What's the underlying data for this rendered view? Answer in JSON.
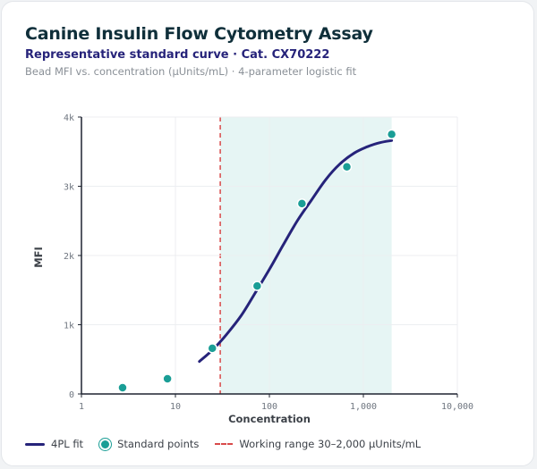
{
  "header": {
    "title": "Canine Insulin Flow Cytometry Assay",
    "subtitle": "Representative standard curve · Cat. CX70222",
    "caption": "Bead MFI vs. concentration (µUnits/mL) · 4-parameter logistic fit"
  },
  "legend": {
    "fit_label": "4PL fit",
    "points_label": "Standard points",
    "range_label": "Working range 30–2,000 µUnits/mL"
  },
  "colors": {
    "fit": "#26237a",
    "points": "#1a9e96",
    "range_fill": "#e6f5f4",
    "lod_line": "#d84a4a"
  },
  "chart_data": {
    "type": "scatter",
    "xlabel": "Concentration",
    "ylabel": "MFI",
    "x_scale": "log",
    "xlim": [
      1,
      10000
    ],
    "ylim": [
      0,
      4000
    ],
    "x_ticks": [
      1,
      10,
      100,
      1000,
      10000
    ],
    "x_tick_labels": [
      "1",
      "10",
      "100",
      "1,000",
      "10,000"
    ],
    "y_ticks": [
      0,
      1000,
      2000,
      3000,
      4000
    ],
    "y_tick_labels": [
      "0",
      "1k",
      "2k",
      "3k",
      "4k"
    ],
    "grid": true,
    "working_range": [
      30,
      2000
    ],
    "series": [
      {
        "name": "Standard points",
        "x": [
          2.74,
          8.23,
          24.7,
          74.1,
          222,
          667,
          2000
        ],
        "y": [
          90,
          220,
          660,
          1560,
          2750,
          3280,
          3750
        ]
      },
      {
        "name": "4PL fit",
        "type": "line",
        "x": [
          18,
          25,
          35,
          50,
          70,
          100,
          140,
          200,
          280,
          400,
          560,
          800,
          1100,
          1500,
          2000
        ],
        "y": [
          470,
          640,
          860,
          1130,
          1450,
          1800,
          2150,
          2510,
          2800,
          3100,
          3320,
          3480,
          3570,
          3630,
          3660
        ]
      }
    ]
  }
}
